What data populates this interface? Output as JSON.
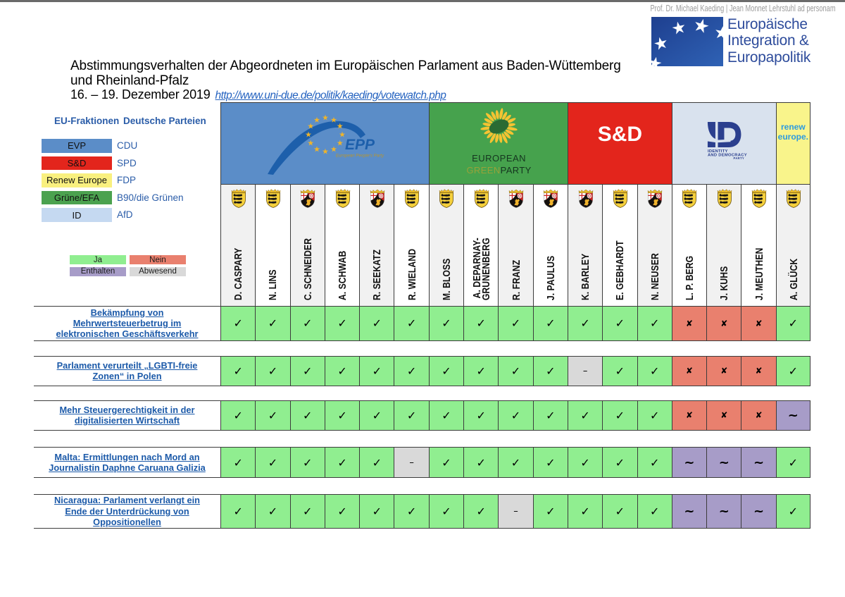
{
  "page": {
    "credit": "Prof. Dr. Michael Kaeding | Jean Monnet Lehrstuhl ad personam",
    "logo": {
      "line1": "Europäische",
      "line2": "Integration &",
      "line3": "Europapolitik"
    },
    "title_line1": "Abstimmungsverhalten der Abgeordneten im Europäischen Parlament aus Baden-Wüttemberg",
    "title_line2": "und Rheinland-Pfalz",
    "date_text": "16. – 19. Dezember 2019",
    "link_text": "http://www.uni-due.de/politik/kaeding/votewatch.php"
  },
  "legend": {
    "fraction_header": "EU-Fraktionen",
    "party_header": "Deutsche Parteien",
    "fractions": [
      {
        "fraction": "EVP",
        "color": "#5b8dc8",
        "party": "CDU"
      },
      {
        "fraction": "S&D",
        "color": "#e3251c",
        "party": "SPD"
      },
      {
        "fraction": "Renew Europe",
        "color": "#f9f07f",
        "party": "FDP"
      },
      {
        "fraction": "Grüne/EFA",
        "color": "#4ba24f",
        "party": "B90/die Grünen"
      },
      {
        "fraction": "ID",
        "color": "#c5d9f1",
        "party": "AfD"
      }
    ],
    "votes": [
      {
        "label": "Ja",
        "value": "ja",
        "color": "#90ee90"
      },
      {
        "label": "Nein",
        "value": "nein",
        "color": "#e9806e"
      },
      {
        "label": "Enthalten",
        "value": "enthalten",
        "color": "#a79cc8"
      },
      {
        "label": "Abwesend",
        "value": "abwesend",
        "color": "#d9d9d9"
      }
    ]
  },
  "groups": [
    {
      "id": "epp",
      "color": "#5b8dc8",
      "span": 6,
      "logo_text": "EPP",
      "logo_subtext": "European People's Party"
    },
    {
      "id": "greens",
      "color": "#46a24d",
      "span": 4,
      "logo_text_1": "EUROPEAN",
      "logo_text_2a": "GREEN",
      "logo_text_2b": "PARTY"
    },
    {
      "id": "sd",
      "color": "#e3251c",
      "span": 3,
      "logo_text": "S&D"
    },
    {
      "id": "id",
      "color": "#d9e2ee",
      "span": 3,
      "logo_text_1": "IDENTITY",
      "logo_text_2": "AND DEMOCRACY",
      "logo_text_3": "PARTY"
    },
    {
      "id": "renew",
      "color": "#f9f48b",
      "span": 1,
      "logo_text_1": "renew",
      "logo_text_2": "europe."
    }
  ],
  "members": [
    {
      "name": "D. CASPARY",
      "coat": "bw"
    },
    {
      "name": "N. LINS",
      "coat": "bw"
    },
    {
      "name": "C. SCHNEIDER",
      "coat": "rp"
    },
    {
      "name": "A. SCHWAB",
      "coat": "bw"
    },
    {
      "name": "R. SEEKATZ",
      "coat": "rp"
    },
    {
      "name": "R. WIELAND",
      "coat": "bw"
    },
    {
      "name": "M. BLOSS",
      "coat": "bw"
    },
    {
      "name": "A. DEPARNAY-\nGRUNENBERG",
      "coat": "bw"
    },
    {
      "name": "R. FRANZ",
      "coat": "rp"
    },
    {
      "name": "J. PAULUS",
      "coat": "rp"
    },
    {
      "name": "K. BARLEY",
      "coat": "rp"
    },
    {
      "name": "E. GEBHARDT",
      "coat": "bw"
    },
    {
      "name": "N. NEUSER",
      "coat": "rp"
    },
    {
      "name": "L. P. BERG",
      "coat": "bw"
    },
    {
      "name": "J. KUHS",
      "coat": "bw"
    },
    {
      "name": "J. MEUTHEN",
      "coat": "bw"
    },
    {
      "name": "A. GLÜCK",
      "coat": "bw"
    }
  ],
  "rows": [
    {
      "label": "Bekämpfung von Mehrwertsteuerbetrug im elektronischen Geschäftsverkehr",
      "votes": [
        "ja",
        "ja",
        "ja",
        "ja",
        "ja",
        "ja",
        "ja",
        "ja",
        "ja",
        "ja",
        "ja",
        "ja",
        "ja",
        "nein",
        "nein",
        "nein",
        "ja"
      ]
    },
    {
      "label": "Parlament verurteilt „LGBTI-freie Zonen“ in Polen",
      "votes": [
        "ja",
        "ja",
        "ja",
        "ja",
        "ja",
        "ja",
        "ja",
        "ja",
        "ja",
        "ja",
        "abwesend",
        "ja",
        "ja",
        "nein",
        "nein",
        "nein",
        "ja"
      ]
    },
    {
      "label": "Mehr Steuergerechtigkeit in der digitalisierten Wirtschaft",
      "votes": [
        "ja",
        "ja",
        "ja",
        "ja",
        "ja",
        "ja",
        "ja",
        "ja",
        "ja",
        "ja",
        "ja",
        "ja",
        "ja",
        "nein",
        "nein",
        "nein",
        "enthalten"
      ]
    },
    {
      "label": "Malta: Ermittlungen nach Mord an Journalistin Daphne Caruana Galizia",
      "votes": [
        "ja",
        "ja",
        "ja",
        "ja",
        "ja",
        "abwesend",
        "ja",
        "ja",
        "ja",
        "ja",
        "ja",
        "ja",
        "ja",
        "enthalten",
        "enthalten",
        "enthalten",
        "ja"
      ]
    },
    {
      "label": "Nicaragua: Parlament verlangt ein Ende der Unterdrückung von Oppositionellen",
      "votes": [
        "ja",
        "ja",
        "ja",
        "ja",
        "ja",
        "ja",
        "ja",
        "ja",
        "abwesend",
        "ja",
        "ja",
        "ja",
        "ja",
        "enthalten",
        "enthalten",
        "enthalten",
        "ja"
      ]
    }
  ],
  "marks": {
    "ja": "✓",
    "nein": "✘",
    "enthalten": "~",
    "abwesend": "–"
  }
}
